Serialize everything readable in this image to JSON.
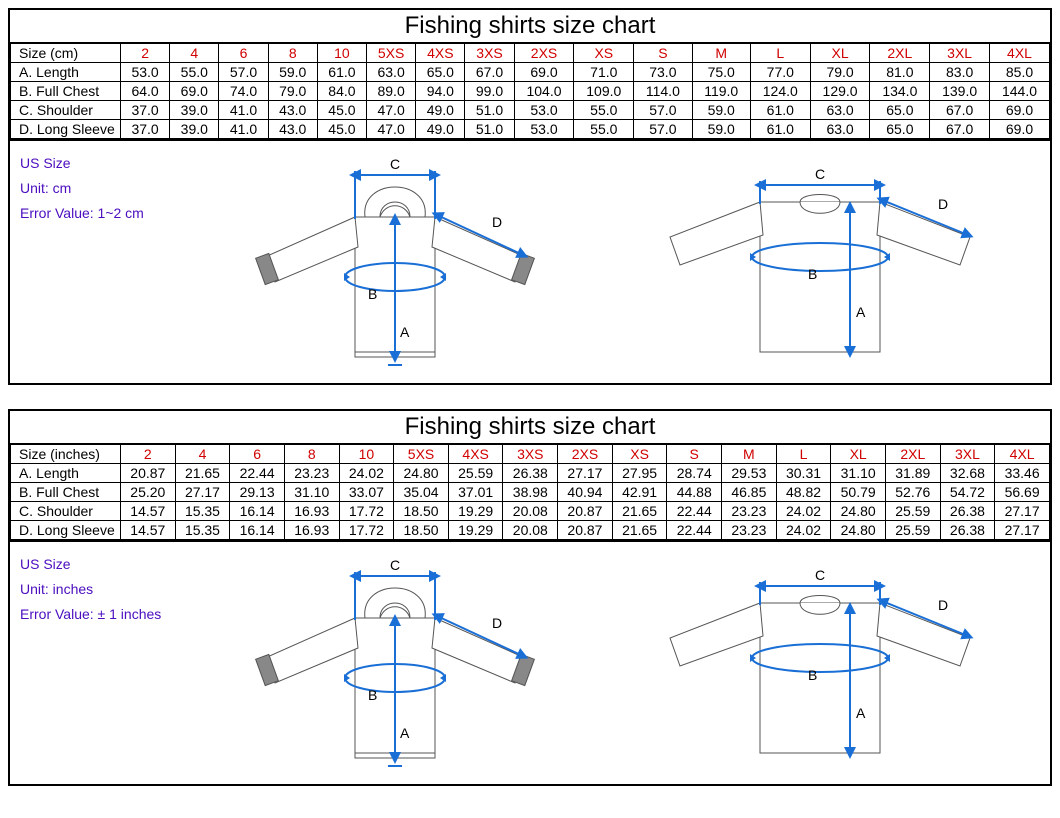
{
  "title": "Fishing shirts size chart",
  "sizes": [
    "2",
    "4",
    "6",
    "8",
    "10",
    "5XS",
    "4XS",
    "3XS",
    "2XS",
    "XS",
    "S",
    "M",
    "L",
    "XL",
    "2XL",
    "3XL",
    "4XL"
  ],
  "measure_labels": [
    "A. Length",
    "B. Full Chest",
    "C. Shoulder",
    "D. Long Sleeve"
  ],
  "info_labels": {
    "us_size": "US Size",
    "unit_prefix": "Unit: ",
    "error_prefix": "Error Value: "
  },
  "diagram_letters": {
    "A": "A",
    "B": "B",
    "C": "C",
    "D": "D"
  },
  "colors": {
    "border": "#000000",
    "size_header": "#d00000",
    "info_text": "#4b0dbf",
    "arrow": "#1a6fd6",
    "shirt_stroke": "#555555",
    "shirt_fill": "#ffffff",
    "cuff": "#888888"
  },
  "charts": [
    {
      "unit_header": "Size (cm)",
      "unit_label": "cm",
      "error_label": "1~2 cm",
      "rows": [
        [
          "53.0",
          "55.0",
          "57.0",
          "59.0",
          "61.0",
          "63.0",
          "65.0",
          "67.0",
          "69.0",
          "71.0",
          "73.0",
          "75.0",
          "77.0",
          "79.0",
          "81.0",
          "83.0",
          "85.0"
        ],
        [
          "64.0",
          "69.0",
          "74.0",
          "79.0",
          "84.0",
          "89.0",
          "94.0",
          "99.0",
          "104.0",
          "109.0",
          "114.0",
          "119.0",
          "124.0",
          "129.0",
          "134.0",
          "139.0",
          "144.0"
        ],
        [
          "37.0",
          "39.0",
          "41.0",
          "43.0",
          "45.0",
          "47.0",
          "49.0",
          "51.0",
          "53.0",
          "55.0",
          "57.0",
          "59.0",
          "61.0",
          "63.0",
          "65.0",
          "67.0",
          "69.0"
        ],
        [
          "37.0",
          "39.0",
          "41.0",
          "43.0",
          "45.0",
          "47.0",
          "49.0",
          "51.0",
          "53.0",
          "55.0",
          "57.0",
          "59.0",
          "61.0",
          "63.0",
          "65.0",
          "67.0",
          "69.0"
        ]
      ]
    },
    {
      "unit_header": "Size (inches)",
      "unit_label": "inches",
      "error_label": "± 1 inches",
      "rows": [
        [
          "20.87",
          "21.65",
          "22.44",
          "23.23",
          "24.02",
          "24.80",
          "25.59",
          "26.38",
          "27.17",
          "27.95",
          "28.74",
          "29.53",
          "30.31",
          "31.10",
          "31.89",
          "32.68",
          "33.46"
        ],
        [
          "25.20",
          "27.17",
          "29.13",
          "31.10",
          "33.07",
          "35.04",
          "37.01",
          "38.98",
          "40.94",
          "42.91",
          "44.88",
          "46.85",
          "48.82",
          "50.79",
          "52.76",
          "54.72",
          "56.69"
        ],
        [
          "14.57",
          "15.35",
          "16.14",
          "16.93",
          "17.72",
          "18.50",
          "19.29",
          "20.08",
          "20.87",
          "21.65",
          "22.44",
          "23.23",
          "24.02",
          "24.80",
          "25.59",
          "26.38",
          "27.17"
        ],
        [
          "14.57",
          "15.35",
          "16.14",
          "16.93",
          "17.72",
          "18.50",
          "19.29",
          "20.08",
          "20.87",
          "21.65",
          "22.44",
          "23.23",
          "24.02",
          "24.80",
          "25.59",
          "26.38",
          "27.17"
        ]
      ]
    }
  ]
}
